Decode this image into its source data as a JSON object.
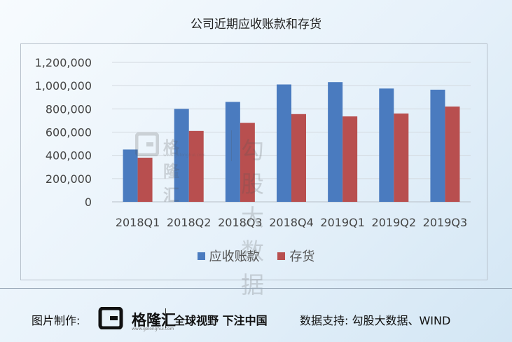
{
  "title": "公司近期应收账款和存货",
  "chart_data": {
    "type": "bar",
    "title": "公司近期应收账款和存货",
    "categories": [
      "2018Q1",
      "2018Q2",
      "2018Q3",
      "2018Q4",
      "2019Q1",
      "2019Q2",
      "2019Q3"
    ],
    "series": [
      {
        "name": "应收账款",
        "color": "#4a7bbf",
        "values": [
          450000,
          800000,
          860000,
          1010000,
          1030000,
          975000,
          965000
        ]
      },
      {
        "name": "存货",
        "color": "#b84f4f",
        "values": [
          380000,
          610000,
          680000,
          755000,
          735000,
          760000,
          820000
        ]
      }
    ],
    "ylim": [
      0,
      1200000
    ],
    "yticks": [
      0,
      200000,
      400000,
      600000,
      800000,
      1000000,
      1200000
    ],
    "ytick_labels": [
      "0",
      "200,000",
      "400,000",
      "600,000",
      "800,000",
      "1,000,000",
      "1,200,000"
    ],
    "grid": true,
    "legend_position": "bottom",
    "xlabel": "",
    "ylabel": ""
  },
  "watermark": {
    "brand": "格隆汇",
    "url": "www.gelonghui.com",
    "text": "勾股大数据"
  },
  "footer": {
    "label": "图片制作:",
    "brand": "格隆汇",
    "url": "www.gelonghui.com",
    "slogan": "全球视野 下注中国",
    "source": "数据支持: 勾股大数据、WIND"
  }
}
